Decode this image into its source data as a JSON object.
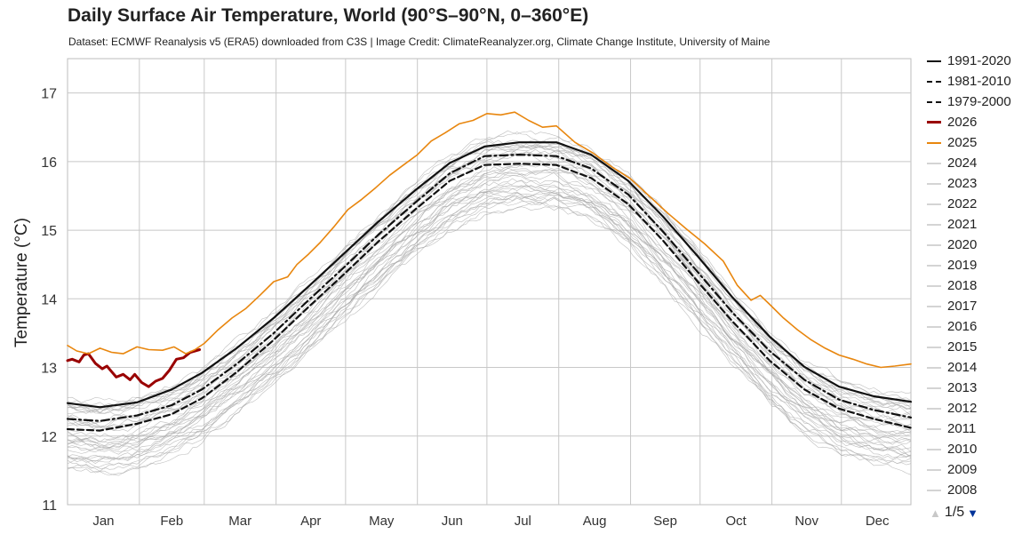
{
  "header": {
    "title": "Daily Surface Air Temperature, World (90°S–90°N, 0–360°E)",
    "subtitle": "Dataset: ECMWF Reanalysis v5 (ERA5) downloaded from C3S | Image Credit: ClimateReanalyzer.org, Climate Change Institute, University of Maine"
  },
  "legend": {
    "items": [
      {
        "label": "1991-2020",
        "color": "#111111",
        "style": "solid"
      },
      {
        "label": "1981-2010",
        "color": "#111111",
        "style": "dashdot"
      },
      {
        "label": "1979-2000",
        "color": "#111111",
        "style": "dashed"
      },
      {
        "label": "2026",
        "color": "#990000",
        "style": "solid-bold"
      },
      {
        "label": "2025",
        "color": "#e8860e",
        "style": "solid"
      },
      {
        "label": "2024",
        "color": "#d4d4d4",
        "style": "solid"
      },
      {
        "label": "2023",
        "color": "#d4d4d4",
        "style": "solid"
      },
      {
        "label": "2022",
        "color": "#d4d4d4",
        "style": "solid"
      },
      {
        "label": "2021",
        "color": "#d4d4d4",
        "style": "solid"
      },
      {
        "label": "2020",
        "color": "#d4d4d4",
        "style": "solid"
      },
      {
        "label": "2019",
        "color": "#d4d4d4",
        "style": "solid"
      },
      {
        "label": "2018",
        "color": "#d4d4d4",
        "style": "solid"
      },
      {
        "label": "2017",
        "color": "#d4d4d4",
        "style": "solid"
      },
      {
        "label": "2016",
        "color": "#d4d4d4",
        "style": "solid"
      },
      {
        "label": "2015",
        "color": "#d4d4d4",
        "style": "solid"
      },
      {
        "label": "2014",
        "color": "#d4d4d4",
        "style": "solid"
      },
      {
        "label": "2013",
        "color": "#d4d4d4",
        "style": "solid"
      },
      {
        "label": "2012",
        "color": "#d4d4d4",
        "style": "solid"
      },
      {
        "label": "2011",
        "color": "#d4d4d4",
        "style": "solid"
      },
      {
        "label": "2010",
        "color": "#d4d4d4",
        "style": "solid"
      },
      {
        "label": "2009",
        "color": "#d4d4d4",
        "style": "solid"
      },
      {
        "label": "2008",
        "color": "#d4d4d4",
        "style": "solid"
      }
    ],
    "pager": "1/5"
  },
  "chart_data": {
    "type": "line",
    "title": "Daily Surface Air Temperature, World (90°S–90°N, 0–360°E)",
    "xlabel": "",
    "ylabel": "Temperature (°C)",
    "ylim": [
      11,
      17.5
    ],
    "xlim": [
      1,
      365
    ],
    "yticks": [
      11,
      12,
      13,
      14,
      15,
      16,
      17
    ],
    "x_categories": [
      "Jan",
      "Feb",
      "Mar",
      "Apr",
      "May",
      "Jun",
      "Jul",
      "Aug",
      "Sep",
      "Oct",
      "Nov",
      "Dec"
    ],
    "x_category_start_days": [
      1,
      32,
      60,
      91,
      121,
      152,
      182,
      213,
      244,
      274,
      305,
      335
    ],
    "grid": true,
    "legend_position": "right",
    "background_years": {
      "count": 40,
      "color": "#a8a8a8",
      "range_low": [
        11.4,
        15.5
      ],
      "range_high": [
        12.4,
        16.4
      ]
    },
    "series": [
      {
        "name": "1991-2020",
        "color": "#111111",
        "dash": "solid",
        "x": [
          1,
          15,
          31,
          46,
          59,
          74,
          90,
          105,
          120,
          135,
          151,
          166,
          181,
          196,
          212,
          227,
          243,
          258,
          273,
          288,
          304,
          319,
          334,
          349,
          365
        ],
        "y": [
          12.48,
          12.42,
          12.49,
          12.68,
          12.92,
          13.28,
          13.72,
          14.18,
          14.65,
          15.12,
          15.58,
          15.98,
          16.22,
          16.28,
          16.28,
          16.1,
          15.72,
          15.2,
          14.62,
          14.02,
          13.45,
          13.01,
          12.72,
          12.58,
          12.5
        ]
      },
      {
        "name": "1981-2010",
        "color": "#111111",
        "dash": "dashdot",
        "x": [
          1,
          15,
          31,
          46,
          59,
          74,
          90,
          105,
          120,
          135,
          151,
          166,
          181,
          196,
          212,
          227,
          243,
          258,
          273,
          288,
          304,
          319,
          334,
          349,
          365
        ],
        "y": [
          12.25,
          12.22,
          12.3,
          12.45,
          12.68,
          13.05,
          13.5,
          13.98,
          14.45,
          14.93,
          15.4,
          15.83,
          16.08,
          16.1,
          16.08,
          15.9,
          15.52,
          14.98,
          14.39,
          13.8,
          13.24,
          12.82,
          12.53,
          12.38,
          12.27
        ]
      },
      {
        "name": "1979-2000",
        "color": "#111111",
        "dash": "dashed",
        "x": [
          1,
          15,
          31,
          46,
          59,
          74,
          90,
          105,
          120,
          135,
          151,
          166,
          181,
          196,
          212,
          227,
          243,
          258,
          273,
          288,
          304,
          319,
          334,
          349,
          365
        ],
        "y": [
          12.1,
          12.08,
          12.18,
          12.32,
          12.55,
          12.93,
          13.4,
          13.88,
          14.35,
          14.83,
          15.3,
          15.72,
          15.95,
          15.97,
          15.95,
          15.76,
          15.38,
          14.85,
          14.25,
          13.67,
          13.1,
          12.68,
          12.4,
          12.25,
          12.12
        ]
      },
      {
        "name": "2026",
        "color": "#990000",
        "dash": "solid",
        "width": 3,
        "x": [
          1,
          3,
          6,
          8,
          10,
          13,
          16,
          18,
          20,
          22,
          25,
          28,
          30,
          33,
          36,
          39,
          42,
          45,
          48,
          51,
          54,
          58
        ],
        "y": [
          13.1,
          13.12,
          13.08,
          13.18,
          13.2,
          13.06,
          12.98,
          13.02,
          12.94,
          12.86,
          12.9,
          12.82,
          12.9,
          12.78,
          12.72,
          12.8,
          12.84,
          12.96,
          13.12,
          13.14,
          13.22,
          13.26
        ]
      },
      {
        "name": "2025",
        "color": "#e8860e",
        "dash": "solid",
        "width": 1.6,
        "x": [
          1,
          5,
          10,
          15,
          20,
          25,
          31,
          36,
          42,
          47,
          52,
          56,
          60,
          66,
          72,
          78,
          84,
          90,
          96,
          100,
          105,
          110,
          116,
          122,
          128,
          134,
          140,
          146,
          152,
          158,
          164,
          170,
          176,
          182,
          188,
          194,
          200,
          206,
          212,
          220,
          228,
          236,
          244,
          252,
          260,
          268,
          276,
          284,
          290,
          296,
          300,
          304,
          310,
          316,
          322,
          328,
          334,
          340,
          346,
          352,
          358,
          365
        ],
        "y": [
          13.32,
          13.24,
          13.2,
          13.28,
          13.22,
          13.2,
          13.3,
          13.26,
          13.25,
          13.3,
          13.2,
          13.26,
          13.35,
          13.55,
          13.72,
          13.86,
          14.05,
          14.25,
          14.32,
          14.5,
          14.65,
          14.82,
          15.05,
          15.3,
          15.45,
          15.62,
          15.8,
          15.95,
          16.1,
          16.3,
          16.42,
          16.55,
          16.6,
          16.7,
          16.68,
          16.72,
          16.6,
          16.5,
          16.52,
          16.28,
          16.12,
          15.92,
          15.75,
          15.5,
          15.25,
          15.02,
          14.8,
          14.55,
          14.2,
          13.98,
          14.05,
          13.92,
          13.72,
          13.55,
          13.4,
          13.28,
          13.18,
          13.12,
          13.05,
          13.0,
          13.02,
          13.05
        ]
      }
    ]
  }
}
